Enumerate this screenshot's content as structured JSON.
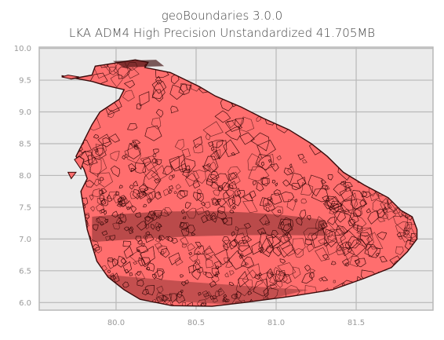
{
  "chart_data": {
    "type": "map",
    "title": "geoBoundaries 3.0.0",
    "subtitle": "LKA ADM4 High Precision Unstandardized 41.705MB",
    "xlabel": "",
    "ylabel": "",
    "xlim": [
      79.52,
      81.98
    ],
    "ylim": [
      5.88,
      10.02
    ],
    "x_ticks": [
      "80.0",
      "80.5",
      "81.0",
      "81.5"
    ],
    "x_tick_values": [
      80.0,
      80.5,
      81.0,
      81.5
    ],
    "y_ticks": [
      "10.0",
      "9.5",
      "9.0",
      "8.5",
      "8.0",
      "7.5",
      "7.0",
      "6.5",
      "6.0"
    ],
    "y_tick_values": [
      10.0,
      9.5,
      9.0,
      8.5,
      8.0,
      7.5,
      7.0,
      6.5,
      6.0
    ],
    "grid": true,
    "fill_color": "#ff6e6e",
    "edge_color": "#3a0a0a",
    "background_color": "#ebebeb",
    "grid_color": "#b8b8b8",
    "outline": [
      [
        79.66,
        9.57
      ],
      [
        79.72,
        9.52
      ],
      [
        79.85,
        9.58
      ],
      [
        79.87,
        9.72
      ],
      [
        80.12,
        9.82
      ],
      [
        80.2,
        9.78
      ],
      [
        80.18,
        9.7
      ],
      [
        80.34,
        9.62
      ],
      [
        80.52,
        9.4
      ],
      [
        80.62,
        9.25
      ],
      [
        80.78,
        9.08
      ],
      [
        80.92,
        8.9
      ],
      [
        81.08,
        8.72
      ],
      [
        81.22,
        8.5
      ],
      [
        81.32,
        8.3
      ],
      [
        81.42,
        8.05
      ],
      [
        81.55,
        7.85
      ],
      [
        81.7,
        7.65
      ],
      [
        81.78,
        7.45
      ],
      [
        81.85,
        7.35
      ],
      [
        81.88,
        7.15
      ],
      [
        81.88,
        7.0
      ],
      [
        81.82,
        6.8
      ],
      [
        81.72,
        6.55
      ],
      [
        81.55,
        6.38
      ],
      [
        81.35,
        6.2
      ],
      [
        81.1,
        6.1
      ],
      [
        80.8,
        6.0
      ],
      [
        80.6,
        5.94
      ],
      [
        80.35,
        5.95
      ],
      [
        80.15,
        6.05
      ],
      [
        80.05,
        6.2
      ],
      [
        79.95,
        6.4
      ],
      [
        79.88,
        6.65
      ],
      [
        79.85,
        6.9
      ],
      [
        79.82,
        7.15
      ],
      [
        79.8,
        7.45
      ],
      [
        79.78,
        7.75
      ],
      [
        79.82,
        7.95
      ],
      [
        79.8,
        8.1
      ],
      [
        79.75,
        8.3
      ],
      [
        79.8,
        8.55
      ],
      [
        79.85,
        8.8
      ],
      [
        79.9,
        9.0
      ],
      [
        80.02,
        9.2
      ],
      [
        80.05,
        9.35
      ],
      [
        79.93,
        9.42
      ],
      [
        79.85,
        9.48
      ],
      [
        79.66,
        9.57
      ]
    ],
    "islands": [
      [
        [
          79.66,
          9.55
        ],
        [
          79.72,
          9.52
        ],
        [
          79.77,
          9.55
        ],
        [
          79.7,
          9.58
        ]
      ],
      [
        [
          79.74,
          8.25
        ],
        [
          79.78,
          8.1
        ],
        [
          79.8,
          8.25
        ],
        [
          79.77,
          8.3
        ]
      ],
      [
        [
          79.7,
          8.05
        ],
        [
          79.72,
          7.95
        ],
        [
          79.75,
          8.05
        ]
      ]
    ]
  }
}
